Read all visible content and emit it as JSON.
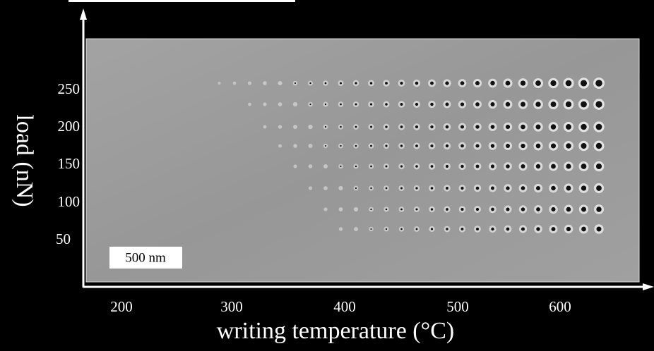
{
  "figure": {
    "x_label": "writing temperature (°C)",
    "y_label": "load (nN)",
    "x_ticks": [
      "200",
      "300",
      "400",
      "500",
      "600"
    ],
    "y_ticks": [
      "250",
      "200",
      "150",
      "100",
      "50"
    ],
    "scale_bar": "500 nm"
  }
}
